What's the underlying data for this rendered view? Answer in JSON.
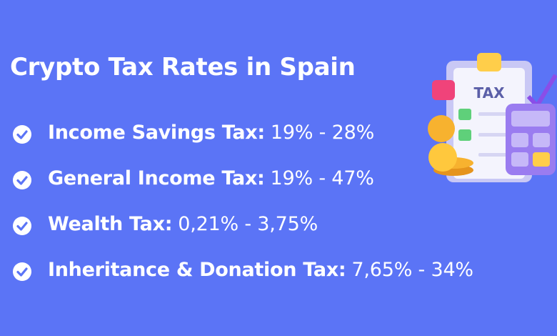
{
  "title": "Crypto Tax Rates in Spain",
  "items": [
    {
      "label": "Income Savings Tax:",
      "value": "19% - 28%"
    },
    {
      "label": "General Income Tax:",
      "value": "19% - 47%"
    },
    {
      "label": "Wealth Tax:",
      "value": "0,21% - 3,75%"
    },
    {
      "label": "Inheritance & Donation Tax:",
      "value": "7,65% - 34%"
    }
  ],
  "illustration": {
    "clipboard_text": "TAX"
  }
}
